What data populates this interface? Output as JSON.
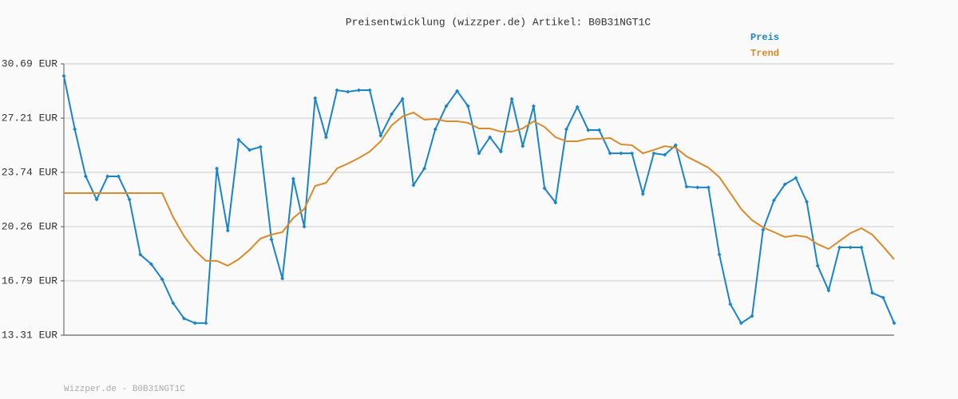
{
  "chart_data": {
    "type": "line",
    "title": "Preisentwicklung (wizzper.de) Artikel: B0B31NGT1C",
    "footer": "Wizzper.de - B0B31NGT1C",
    "ylim": [
      13.31,
      30.69
    ],
    "yticks": [
      {
        "value": 13.31,
        "label": "13.31 EUR"
      },
      {
        "value": 16.79,
        "label": "16.79 EUR"
      },
      {
        "value": 20.26,
        "label": "20.26 EUR"
      },
      {
        "value": 23.74,
        "label": "23.74 EUR"
      },
      {
        "value": 27.21,
        "label": "27.21 EUR"
      },
      {
        "value": 30.69,
        "label": "30.69 EUR"
      }
    ],
    "grid": true,
    "legend": "top-right",
    "series": [
      {
        "name": "Preis",
        "color": "#1a84c6",
        "markers": true,
        "values": [
          29.92,
          26.5,
          23.48,
          22.0,
          23.48,
          23.48,
          22.0,
          18.47,
          17.86,
          16.89,
          15.36,
          14.38,
          14.08,
          14.08,
          23.99,
          20.01,
          25.83,
          25.17,
          25.37,
          19.44,
          16.94,
          23.33,
          20.26,
          28.49,
          25.99,
          29.0,
          28.9,
          29.0,
          29.0,
          26.09,
          27.47,
          28.44,
          22.92,
          23.99,
          26.5,
          27.98,
          28.95,
          27.98,
          24.96,
          25.99,
          25.07,
          28.44,
          25.42,
          27.98,
          22.72,
          21.8,
          26.5,
          27.93,
          26.45,
          26.45,
          24.96,
          24.96,
          24.96,
          22.36,
          24.96,
          24.86,
          25.48,
          22.82,
          22.77,
          22.77,
          18.47,
          15.3,
          14.08,
          14.54,
          20.06,
          21.95,
          22.97,
          23.38,
          21.85,
          17.76,
          16.17,
          18.93,
          18.93,
          18.93,
          16.02,
          15.71,
          14.08
        ]
      },
      {
        "name": "Trend",
        "color": "#d98a2b",
        "markers": false,
        "values": [
          22.41,
          22.41,
          22.41,
          22.41,
          22.41,
          22.41,
          22.41,
          22.41,
          22.41,
          22.41,
          20.87,
          19.65,
          18.73,
          18.07,
          18.07,
          17.76,
          18.17,
          18.78,
          19.5,
          19.75,
          19.91,
          20.82,
          21.39,
          22.87,
          23.07,
          23.99,
          24.3,
          24.66,
          25.07,
          25.73,
          26.75,
          27.32,
          27.57,
          27.11,
          27.16,
          27.01,
          27.01,
          26.91,
          26.55,
          26.55,
          26.35,
          26.35,
          26.55,
          27.01,
          26.65,
          25.99,
          25.73,
          25.73,
          25.89,
          25.89,
          25.94,
          25.53,
          25.48,
          24.96,
          25.17,
          25.42,
          25.32,
          24.76,
          24.4,
          24.04,
          23.43,
          22.41,
          21.39,
          20.67,
          20.21,
          19.91,
          19.6,
          19.7,
          19.6,
          19.14,
          18.83,
          19.34,
          19.85,
          20.16,
          19.75,
          18.98,
          18.17
        ]
      }
    ]
  }
}
